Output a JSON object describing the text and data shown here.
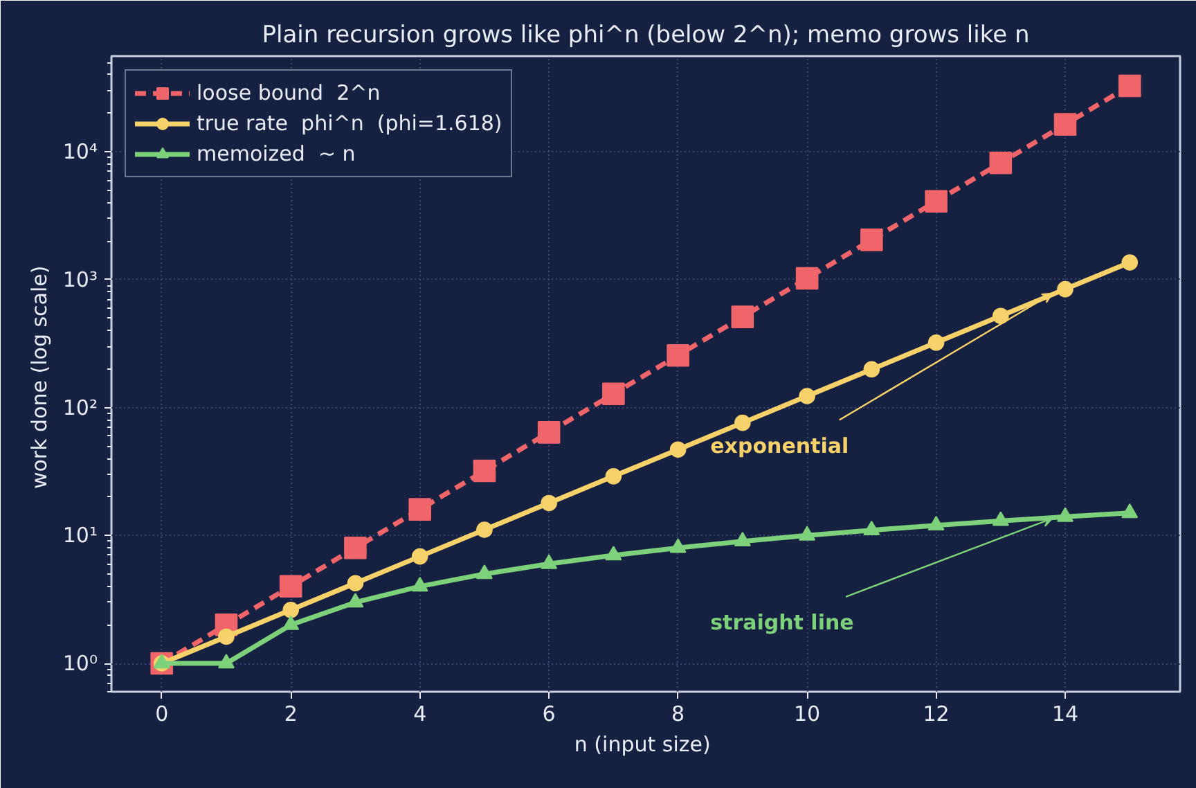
{
  "chart_data": {
    "type": "line",
    "title": "Plain recursion grows like phi^n (below 2^n); memo grows like n",
    "xlabel": "n  (input size)",
    "ylabel": "work done  (log scale)",
    "x": [
      0,
      1,
      2,
      3,
      4,
      5,
      6,
      7,
      8,
      9,
      10,
      11,
      12,
      13,
      14,
      15
    ],
    "series": [
      {
        "name": "loose bound  2^n",
        "color": "#f0656a",
        "marker": "square",
        "line_style": "dashed",
        "values": [
          1,
          2,
          4,
          8,
          16,
          32,
          64,
          128,
          256,
          512,
          1024,
          2048,
          4096,
          8192,
          16384,
          32768
        ]
      },
      {
        "name": "true rate  phi^n  (phi=1.618)",
        "color": "#f7d26a",
        "marker": "circle",
        "line_style": "solid",
        "values": [
          1,
          1.618,
          2.618,
          4.236,
          6.854,
          11.09,
          17.94,
          29.03,
          46.98,
          76.01,
          122.99,
          199.0,
          321.99,
          521.0,
          842.98,
          1364.0
        ]
      },
      {
        "name": "memoized  ~ n",
        "color": "#7dd17a",
        "marker": "triangle",
        "line_style": "solid",
        "values": [
          1,
          1,
          2,
          3,
          4,
          5,
          6,
          7,
          8,
          9,
          10,
          11,
          12,
          13,
          14,
          15
        ]
      }
    ],
    "annotations": [
      {
        "text": "exponential",
        "x": 13.8,
        "y": 780
      },
      {
        "text": "straight line",
        "x": 13.8,
        "y": 13.6
      }
    ],
    "log": "y",
    "xlim": [
      -0.78,
      15.78
    ],
    "ylim": [
      0.6,
      56000
    ],
    "xticks": [
      0,
      2,
      4,
      6,
      8,
      10,
      12,
      14
    ],
    "yticks": [
      {
        "value": 1,
        "label": "10⁰"
      },
      {
        "value": 10,
        "label": "10¹"
      },
      {
        "value": 100,
        "label": "10²"
      },
      {
        "value": 1000,
        "label": "10³"
      },
      {
        "value": 10000,
        "label": "10⁴"
      }
    ],
    "grid": true,
    "legend": "top left"
  }
}
